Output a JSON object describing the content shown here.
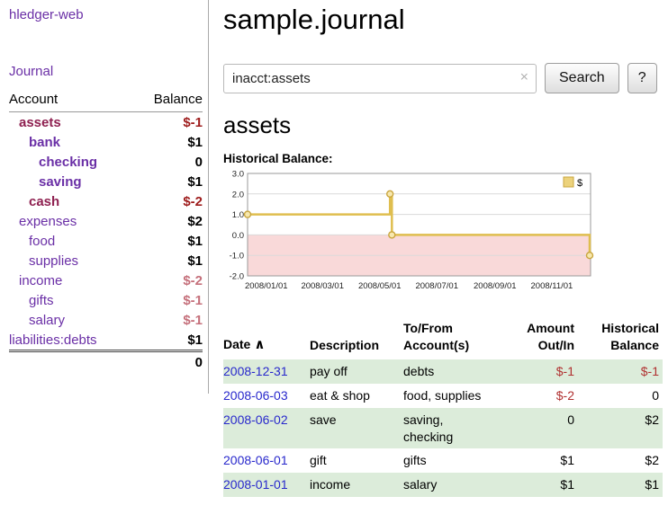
{
  "colors": {
    "link_purple": "#6a2fa6",
    "link_blue": "#2828cc",
    "negative": "#b03030",
    "negative_strong": "#9e1c1c",
    "negative_muted": "#c5707b",
    "negative_name": "#8e2050",
    "row_green": "#dcecda"
  },
  "sidebar": {
    "app_title": "hledger-web",
    "journal_label": "Journal",
    "accounts_table": {
      "headers": {
        "account": "Account",
        "balance": "Balance"
      },
      "rows": [
        {
          "name": "assets",
          "balance": "$-1",
          "indent": 1,
          "bold": true,
          "negative": true
        },
        {
          "name": "bank",
          "balance": "$1",
          "indent": 2,
          "bold": true,
          "negative": false
        },
        {
          "name": "checking",
          "balance": "0",
          "indent": 3,
          "bold": true,
          "negative": false
        },
        {
          "name": "saving",
          "balance": "$1",
          "indent": 3,
          "bold": true,
          "negative": false
        },
        {
          "name": "cash",
          "balance": "$-2",
          "indent": 2,
          "bold": true,
          "negative": true
        },
        {
          "name": "expenses",
          "balance": "$2",
          "indent": 1,
          "bold": false,
          "negative": false
        },
        {
          "name": "food",
          "balance": "$1",
          "indent": 2,
          "bold": false,
          "negative": false
        },
        {
          "name": "supplies",
          "balance": "$1",
          "indent": 2,
          "bold": false,
          "negative": false
        },
        {
          "name": "income",
          "balance": "$-2",
          "indent": 1,
          "bold": false,
          "negative": true
        },
        {
          "name": "gifts",
          "balance": "$-1",
          "indent": 2,
          "bold": false,
          "negative": true
        },
        {
          "name": "salary",
          "balance": "$-1",
          "indent": 2,
          "bold": false,
          "negative": true
        },
        {
          "name": "liabilities:debts",
          "balance": "$1",
          "indent": 0,
          "bold": false,
          "negative": false
        }
      ],
      "total": "0"
    }
  },
  "main": {
    "title": "sample.journal",
    "search": {
      "value": "inacct:assets",
      "clear_icon": "×",
      "button_label": "Search",
      "help_label": "?"
    },
    "section_title": "assets",
    "chart_label": "Historical Balance:"
  },
  "chart_data": {
    "type": "line",
    "title": "Historical Balance",
    "x_domain": [
      "2008-01-01",
      "2009-01-01"
    ],
    "ylim": [
      -2.0,
      3.0
    ],
    "yticks": [
      3.0,
      2.0,
      1.0,
      0.0,
      -1.0,
      -2.0
    ],
    "xticks": [
      {
        "date": "2008-01-01",
        "label": "2008/01/01"
      },
      {
        "date": "2008-03-01",
        "label": "2008/03/01"
      },
      {
        "date": "2008-05-01",
        "label": "2008/05/01"
      },
      {
        "date": "2008-07-01",
        "label": "2008/07/01"
      },
      {
        "date": "2008-09-01",
        "label": "2008/09/01"
      },
      {
        "date": "2008-11-01",
        "label": "2008/11/01"
      }
    ],
    "series": [
      {
        "name": "$",
        "step": true,
        "points": [
          {
            "x": "2008-01-01",
            "y": 1
          },
          {
            "x": "2008-06-01",
            "y": 2
          },
          {
            "x": "2008-06-03",
            "y": 0
          },
          {
            "x": "2008-12-31",
            "y": -1
          }
        ]
      }
    ],
    "legend": {
      "position": "top-right",
      "entries": [
        {
          "label": "$",
          "swatch": "#ecd27c"
        }
      ]
    },
    "colors": {
      "line": "#dfbe4f",
      "marker_fill": "#f7e8ae",
      "marker_stroke": "#c9a53e",
      "negative_region": "#f9d9d9",
      "grid": "#dadada",
      "border": "#999999"
    }
  },
  "register": {
    "headers": {
      "date": "Date",
      "description": "Description",
      "tofrom": "To/From\nAccount(s)",
      "amount": "Amount\nOut/In",
      "balance": "Historical\nBalance"
    },
    "sort_icon": "∧",
    "rows": [
      {
        "date": "2008-12-31",
        "description": "pay off",
        "accounts": "debts",
        "amount": "$-1",
        "amount_negative": true,
        "balance": "$-1",
        "balance_negative": true
      },
      {
        "date": "2008-06-03",
        "description": "eat & shop",
        "accounts": "food, supplies",
        "amount": "$-2",
        "amount_negative": true,
        "balance": "0",
        "balance_negative": false
      },
      {
        "date": "2008-06-02",
        "description": "save",
        "accounts": "saving,\nchecking",
        "amount": "0",
        "amount_negative": false,
        "balance": "$2",
        "balance_negative": false
      },
      {
        "date": "2008-06-01",
        "description": "gift",
        "accounts": "gifts",
        "amount": "$1",
        "amount_negative": false,
        "balance": "$2",
        "balance_negative": false
      },
      {
        "date": "2008-01-01",
        "description": "income",
        "accounts": "salary",
        "amount": "$1",
        "amount_negative": false,
        "balance": "$1",
        "balance_negative": false
      }
    ]
  }
}
